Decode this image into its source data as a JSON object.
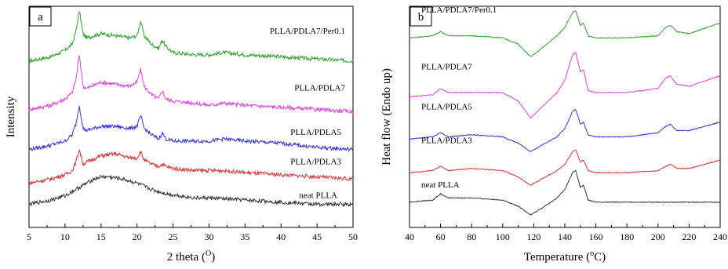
{
  "chart_data": [
    {
      "type": "line",
      "panel_label": "a",
      "xlabel": "2 theta (",
      "xlabel_sup": "O",
      "xlabel_end": ")",
      "ylabel": "Intensity",
      "xlim": [
        5,
        50
      ],
      "xticks": [
        "5",
        "10",
        "15",
        "20",
        "25",
        "30",
        "35",
        "40",
        "45",
        "50"
      ],
      "grid": false,
      "colors": {
        "PLLA/PDLA7/Per0.1": "#2ca02c",
        "PLLA/PDLA7": "#e040e0",
        "PLLA/PDLA5": "#3333dd",
        "PLLA/PDLA3": "#dd3333",
        "neat PLLA": "#333333"
      },
      "series": [
        {
          "name": "PLLA/PDLA7/Per0.1",
          "x": [
            5,
            8,
            10,
            11,
            11.5,
            12,
            12.5,
            13,
            15,
            17,
            19,
            20,
            20.5,
            21,
            22,
            23,
            23.5,
            24,
            25,
            28,
            30,
            32,
            35,
            40,
            45,
            50
          ],
          "y": [
            0.74,
            0.76,
            0.79,
            0.82,
            0.88,
            0.98,
            0.87,
            0.85,
            0.87,
            0.86,
            0.85,
            0.86,
            0.93,
            0.86,
            0.82,
            0.8,
            0.84,
            0.81,
            0.78,
            0.77,
            0.77,
            0.78,
            0.77,
            0.76,
            0.75,
            0.74
          ]
        },
        {
          "name": "PLLA/PDLA7",
          "x": [
            5,
            8,
            10,
            11,
            11.5,
            12,
            12.5,
            13,
            15,
            17,
            19,
            20,
            20.5,
            21,
            22,
            23,
            23.5,
            24,
            25,
            28,
            30,
            32,
            35,
            40,
            45,
            50
          ],
          "y": [
            0.51,
            0.53,
            0.56,
            0.59,
            0.65,
            0.77,
            0.62,
            0.61,
            0.64,
            0.63,
            0.62,
            0.64,
            0.7,
            0.62,
            0.58,
            0.56,
            0.6,
            0.56,
            0.55,
            0.54,
            0.53,
            0.54,
            0.53,
            0.52,
            0.51,
            0.5
          ]
        },
        {
          "name": "PLLA/PDLA5",
          "x": [
            5,
            8,
            10,
            11,
            11.5,
            12,
            12.5,
            13,
            15,
            17,
            19,
            20,
            20.5,
            21,
            22,
            23,
            23.5,
            24,
            25,
            28,
            30,
            32,
            35,
            40,
            45,
            50
          ],
          "y": [
            0.32,
            0.34,
            0.36,
            0.39,
            0.44,
            0.53,
            0.42,
            0.41,
            0.43,
            0.43,
            0.42,
            0.43,
            0.48,
            0.42,
            0.39,
            0.37,
            0.4,
            0.37,
            0.36,
            0.36,
            0.36,
            0.37,
            0.36,
            0.35,
            0.33,
            0.32
          ]
        },
        {
          "name": "PLLA/PDLA3",
          "x": [
            5,
            8,
            10,
            11,
            11.5,
            12,
            12.5,
            13,
            15,
            17,
            19,
            20,
            20.5,
            21,
            22,
            23,
            23.5,
            24,
            25,
            28,
            30,
            32,
            35,
            40,
            45,
            50
          ],
          "y": [
            0.16,
            0.18,
            0.2,
            0.22,
            0.26,
            0.32,
            0.25,
            0.26,
            0.29,
            0.3,
            0.28,
            0.28,
            0.31,
            0.27,
            0.25,
            0.24,
            0.25,
            0.24,
            0.23,
            0.22,
            0.22,
            0.22,
            0.21,
            0.2,
            0.19,
            0.18
          ]
        },
        {
          "name": "neat PLLA",
          "x": [
            5,
            8,
            10,
            12,
            14,
            15,
            16,
            18,
            20,
            22,
            24,
            26,
            28,
            30,
            35,
            40,
            45,
            50
          ],
          "y": [
            0.06,
            0.08,
            0.1,
            0.14,
            0.18,
            0.19,
            0.19,
            0.18,
            0.16,
            0.13,
            0.11,
            0.1,
            0.09,
            0.09,
            0.08,
            0.07,
            0.06,
            0.06
          ]
        }
      ]
    },
    {
      "type": "line",
      "panel_label": "b",
      "xlabel": "Temperature (",
      "xlabel_sup": "o",
      "xlabel_end": "C)",
      "ylabel": "Heat flow (Endo up)",
      "xlim": [
        40,
        240
      ],
      "xticks": [
        "40",
        "60",
        "80",
        "100",
        "120",
        "140",
        "160",
        "180",
        "200",
        "220",
        "240"
      ],
      "grid": false,
      "colors": {
        "PLLA/PDLA7/Per0.1": "#2ca02c",
        "PLLA/PDLA7": "#e040e0",
        "PLLA/PDLA5": "#3333dd",
        "PLLA/PDLA3": "#dd3333",
        "neat PLLA": "#333333"
      },
      "series": [
        {
          "name": "PLLA/PDLA7/Per0.1",
          "x": [
            40,
            55,
            60,
            65,
            80,
            100,
            110,
            118,
            125,
            135,
            140,
            145,
            147,
            150,
            152,
            155,
            160,
            180,
            200,
            205,
            208,
            212,
            220,
            240
          ],
          "y": [
            0.85,
            0.86,
            0.88,
            0.86,
            0.86,
            0.85,
            0.82,
            0.76,
            0.8,
            0.86,
            0.9,
            0.97,
            0.98,
            0.91,
            0.92,
            0.86,
            0.85,
            0.85,
            0.86,
            0.9,
            0.91,
            0.88,
            0.87,
            0.92
          ]
        },
        {
          "name": "PLLA/PDLA7",
          "x": [
            40,
            55,
            60,
            65,
            80,
            100,
            110,
            118,
            125,
            135,
            140,
            145,
            147,
            150,
            152,
            155,
            160,
            180,
            200,
            205,
            208,
            212,
            220,
            240
          ],
          "y": [
            0.57,
            0.58,
            0.61,
            0.59,
            0.59,
            0.59,
            0.55,
            0.47,
            0.52,
            0.59,
            0.65,
            0.77,
            0.78,
            0.69,
            0.7,
            0.6,
            0.59,
            0.59,
            0.61,
            0.66,
            0.67,
            0.63,
            0.62,
            0.67
          ]
        },
        {
          "name": "PLLA/PDLA5",
          "x": [
            40,
            55,
            60,
            65,
            80,
            100,
            110,
            118,
            125,
            135,
            140,
            145,
            147,
            150,
            152,
            155,
            160,
            180,
            200,
            205,
            208,
            212,
            220,
            240
          ],
          "y": [
            0.37,
            0.38,
            0.4,
            0.38,
            0.39,
            0.38,
            0.35,
            0.31,
            0.34,
            0.38,
            0.42,
            0.5,
            0.51,
            0.44,
            0.45,
            0.39,
            0.38,
            0.38,
            0.4,
            0.43,
            0.44,
            0.41,
            0.41,
            0.45
          ]
        },
        {
          "name": "PLLA/PDLA3",
          "x": [
            40,
            55,
            60,
            65,
            80,
            100,
            110,
            118,
            125,
            135,
            140,
            145,
            147,
            150,
            152,
            155,
            160,
            180,
            200,
            205,
            208,
            212,
            220,
            240
          ],
          "y": [
            0.21,
            0.22,
            0.24,
            0.22,
            0.23,
            0.22,
            0.19,
            0.15,
            0.18,
            0.22,
            0.25,
            0.31,
            0.32,
            0.26,
            0.27,
            0.22,
            0.21,
            0.21,
            0.22,
            0.24,
            0.25,
            0.23,
            0.23,
            0.27
          ]
        },
        {
          "name": "neat PLLA",
          "x": [
            40,
            55,
            60,
            65,
            80,
            100,
            110,
            118,
            125,
            135,
            140,
            145,
            147,
            150,
            152,
            155,
            160,
            180,
            200,
            220,
            240
          ],
          "y": [
            0.07,
            0.08,
            0.11,
            0.09,
            0.09,
            0.08,
            0.05,
            0.01,
            0.04,
            0.09,
            0.13,
            0.21,
            0.22,
            0.14,
            0.15,
            0.08,
            0.07,
            0.07,
            0.07,
            0.07,
            0.07
          ]
        }
      ]
    }
  ]
}
